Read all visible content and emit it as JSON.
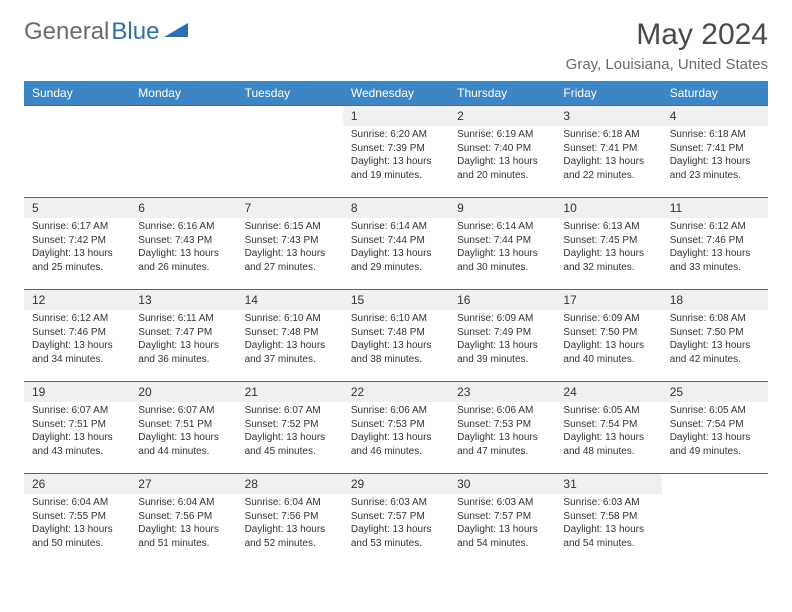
{
  "logo": {
    "text1": "General",
    "text2": "Blue"
  },
  "title": "May 2024",
  "location": "Gray, Louisiana, United States",
  "colors": {
    "header_bg": "#3d86c6",
    "header_text": "#ffffff",
    "border": "#2f6fb0",
    "daynum_bg": "#eef0f2",
    "text": "#333333",
    "logo_gray": "#6a6a6a",
    "logo_blue": "#2f6fb0"
  },
  "day_headers": [
    "Sunday",
    "Monday",
    "Tuesday",
    "Wednesday",
    "Thursday",
    "Friday",
    "Saturday"
  ],
  "weeks": [
    [
      null,
      null,
      null,
      {
        "n": "1",
        "sr": "6:20 AM",
        "ss": "7:39 PM",
        "dl": "13 hours and 19 minutes."
      },
      {
        "n": "2",
        "sr": "6:19 AM",
        "ss": "7:40 PM",
        "dl": "13 hours and 20 minutes."
      },
      {
        "n": "3",
        "sr": "6:18 AM",
        "ss": "7:41 PM",
        "dl": "13 hours and 22 minutes."
      },
      {
        "n": "4",
        "sr": "6:18 AM",
        "ss": "7:41 PM",
        "dl": "13 hours and 23 minutes."
      }
    ],
    [
      {
        "n": "5",
        "sr": "6:17 AM",
        "ss": "7:42 PM",
        "dl": "13 hours and 25 minutes."
      },
      {
        "n": "6",
        "sr": "6:16 AM",
        "ss": "7:43 PM",
        "dl": "13 hours and 26 minutes."
      },
      {
        "n": "7",
        "sr": "6:15 AM",
        "ss": "7:43 PM",
        "dl": "13 hours and 27 minutes."
      },
      {
        "n": "8",
        "sr": "6:14 AM",
        "ss": "7:44 PM",
        "dl": "13 hours and 29 minutes."
      },
      {
        "n": "9",
        "sr": "6:14 AM",
        "ss": "7:44 PM",
        "dl": "13 hours and 30 minutes."
      },
      {
        "n": "10",
        "sr": "6:13 AM",
        "ss": "7:45 PM",
        "dl": "13 hours and 32 minutes."
      },
      {
        "n": "11",
        "sr": "6:12 AM",
        "ss": "7:46 PM",
        "dl": "13 hours and 33 minutes."
      }
    ],
    [
      {
        "n": "12",
        "sr": "6:12 AM",
        "ss": "7:46 PM",
        "dl": "13 hours and 34 minutes."
      },
      {
        "n": "13",
        "sr": "6:11 AM",
        "ss": "7:47 PM",
        "dl": "13 hours and 36 minutes."
      },
      {
        "n": "14",
        "sr": "6:10 AM",
        "ss": "7:48 PM",
        "dl": "13 hours and 37 minutes."
      },
      {
        "n": "15",
        "sr": "6:10 AM",
        "ss": "7:48 PM",
        "dl": "13 hours and 38 minutes."
      },
      {
        "n": "16",
        "sr": "6:09 AM",
        "ss": "7:49 PM",
        "dl": "13 hours and 39 minutes."
      },
      {
        "n": "17",
        "sr": "6:09 AM",
        "ss": "7:50 PM",
        "dl": "13 hours and 40 minutes."
      },
      {
        "n": "18",
        "sr": "6:08 AM",
        "ss": "7:50 PM",
        "dl": "13 hours and 42 minutes."
      }
    ],
    [
      {
        "n": "19",
        "sr": "6:07 AM",
        "ss": "7:51 PM",
        "dl": "13 hours and 43 minutes."
      },
      {
        "n": "20",
        "sr": "6:07 AM",
        "ss": "7:51 PM",
        "dl": "13 hours and 44 minutes."
      },
      {
        "n": "21",
        "sr": "6:07 AM",
        "ss": "7:52 PM",
        "dl": "13 hours and 45 minutes."
      },
      {
        "n": "22",
        "sr": "6:06 AM",
        "ss": "7:53 PM",
        "dl": "13 hours and 46 minutes."
      },
      {
        "n": "23",
        "sr": "6:06 AM",
        "ss": "7:53 PM",
        "dl": "13 hours and 47 minutes."
      },
      {
        "n": "24",
        "sr": "6:05 AM",
        "ss": "7:54 PM",
        "dl": "13 hours and 48 minutes."
      },
      {
        "n": "25",
        "sr": "6:05 AM",
        "ss": "7:54 PM",
        "dl": "13 hours and 49 minutes."
      }
    ],
    [
      {
        "n": "26",
        "sr": "6:04 AM",
        "ss": "7:55 PM",
        "dl": "13 hours and 50 minutes."
      },
      {
        "n": "27",
        "sr": "6:04 AM",
        "ss": "7:56 PM",
        "dl": "13 hours and 51 minutes."
      },
      {
        "n": "28",
        "sr": "6:04 AM",
        "ss": "7:56 PM",
        "dl": "13 hours and 52 minutes."
      },
      {
        "n": "29",
        "sr": "6:03 AM",
        "ss": "7:57 PM",
        "dl": "13 hours and 53 minutes."
      },
      {
        "n": "30",
        "sr": "6:03 AM",
        "ss": "7:57 PM",
        "dl": "13 hours and 54 minutes."
      },
      {
        "n": "31",
        "sr": "6:03 AM",
        "ss": "7:58 PM",
        "dl": "13 hours and 54 minutes."
      },
      null
    ]
  ],
  "labels": {
    "sunrise": "Sunrise:",
    "sunset": "Sunset:",
    "daylight": "Daylight:"
  }
}
